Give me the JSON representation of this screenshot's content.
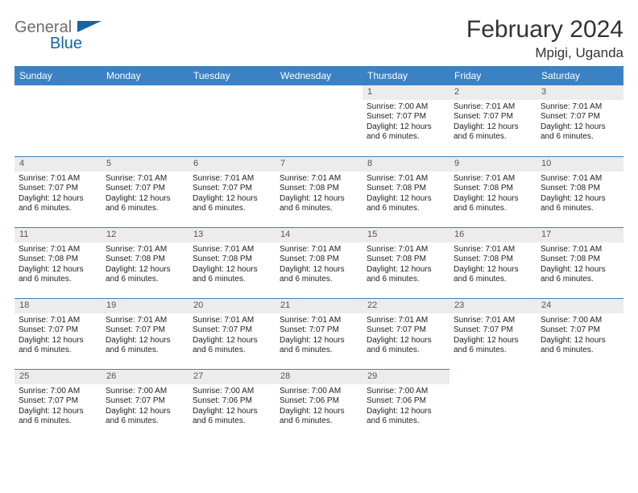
{
  "brand": {
    "general": "General",
    "blue": "Blue"
  },
  "title": "February 2024",
  "location": "Mpigi, Uganda",
  "colors": {
    "header_bg": "#3b82c4",
    "header_text": "#ffffff",
    "daynum_bg": "#ececec",
    "daynum_text": "#555555",
    "border": "#3b82c4",
    "page_bg": "#ffffff",
    "brand_general": "#6c6c6c",
    "brand_blue": "#1665a6",
    "body_text": "#222222"
  },
  "typography": {
    "title_fontsize": 30,
    "location_fontsize": 17,
    "weekday_fontsize": 12,
    "daynum_fontsize": 11,
    "cell_fontsize": 10
  },
  "layout": {
    "cols": 7,
    "rows": 5
  },
  "weekdays": [
    "Sunday",
    "Monday",
    "Tuesday",
    "Wednesday",
    "Thursday",
    "Friday",
    "Saturday"
  ],
  "days": [
    {
      "day": "",
      "blank": true
    },
    {
      "day": "",
      "blank": true
    },
    {
      "day": "",
      "blank": true
    },
    {
      "day": "",
      "blank": true
    },
    {
      "day": "1",
      "sunrise": "Sunrise: 7:00 AM",
      "sunset": "Sunset: 7:07 PM",
      "daylight1": "Daylight: 12 hours",
      "daylight2": "and 6 minutes."
    },
    {
      "day": "2",
      "sunrise": "Sunrise: 7:01 AM",
      "sunset": "Sunset: 7:07 PM",
      "daylight1": "Daylight: 12 hours",
      "daylight2": "and 6 minutes."
    },
    {
      "day": "3",
      "sunrise": "Sunrise: 7:01 AM",
      "sunset": "Sunset: 7:07 PM",
      "daylight1": "Daylight: 12 hours",
      "daylight2": "and 6 minutes."
    },
    {
      "day": "4",
      "sunrise": "Sunrise: 7:01 AM",
      "sunset": "Sunset: 7:07 PM",
      "daylight1": "Daylight: 12 hours",
      "daylight2": "and 6 minutes."
    },
    {
      "day": "5",
      "sunrise": "Sunrise: 7:01 AM",
      "sunset": "Sunset: 7:07 PM",
      "daylight1": "Daylight: 12 hours",
      "daylight2": "and 6 minutes."
    },
    {
      "day": "6",
      "sunrise": "Sunrise: 7:01 AM",
      "sunset": "Sunset: 7:07 PM",
      "daylight1": "Daylight: 12 hours",
      "daylight2": "and 6 minutes."
    },
    {
      "day": "7",
      "sunrise": "Sunrise: 7:01 AM",
      "sunset": "Sunset: 7:08 PM",
      "daylight1": "Daylight: 12 hours",
      "daylight2": "and 6 minutes."
    },
    {
      "day": "8",
      "sunrise": "Sunrise: 7:01 AM",
      "sunset": "Sunset: 7:08 PM",
      "daylight1": "Daylight: 12 hours",
      "daylight2": "and 6 minutes."
    },
    {
      "day": "9",
      "sunrise": "Sunrise: 7:01 AM",
      "sunset": "Sunset: 7:08 PM",
      "daylight1": "Daylight: 12 hours",
      "daylight2": "and 6 minutes."
    },
    {
      "day": "10",
      "sunrise": "Sunrise: 7:01 AM",
      "sunset": "Sunset: 7:08 PM",
      "daylight1": "Daylight: 12 hours",
      "daylight2": "and 6 minutes."
    },
    {
      "day": "11",
      "sunrise": "Sunrise: 7:01 AM",
      "sunset": "Sunset: 7:08 PM",
      "daylight1": "Daylight: 12 hours",
      "daylight2": "and 6 minutes."
    },
    {
      "day": "12",
      "sunrise": "Sunrise: 7:01 AM",
      "sunset": "Sunset: 7:08 PM",
      "daylight1": "Daylight: 12 hours",
      "daylight2": "and 6 minutes."
    },
    {
      "day": "13",
      "sunrise": "Sunrise: 7:01 AM",
      "sunset": "Sunset: 7:08 PM",
      "daylight1": "Daylight: 12 hours",
      "daylight2": "and 6 minutes."
    },
    {
      "day": "14",
      "sunrise": "Sunrise: 7:01 AM",
      "sunset": "Sunset: 7:08 PM",
      "daylight1": "Daylight: 12 hours",
      "daylight2": "and 6 minutes."
    },
    {
      "day": "15",
      "sunrise": "Sunrise: 7:01 AM",
      "sunset": "Sunset: 7:08 PM",
      "daylight1": "Daylight: 12 hours",
      "daylight2": "and 6 minutes."
    },
    {
      "day": "16",
      "sunrise": "Sunrise: 7:01 AM",
      "sunset": "Sunset: 7:08 PM",
      "daylight1": "Daylight: 12 hours",
      "daylight2": "and 6 minutes."
    },
    {
      "day": "17",
      "sunrise": "Sunrise: 7:01 AM",
      "sunset": "Sunset: 7:08 PM",
      "daylight1": "Daylight: 12 hours",
      "daylight2": "and 6 minutes."
    },
    {
      "day": "18",
      "sunrise": "Sunrise: 7:01 AM",
      "sunset": "Sunset: 7:07 PM",
      "daylight1": "Daylight: 12 hours",
      "daylight2": "and 6 minutes."
    },
    {
      "day": "19",
      "sunrise": "Sunrise: 7:01 AM",
      "sunset": "Sunset: 7:07 PM",
      "daylight1": "Daylight: 12 hours",
      "daylight2": "and 6 minutes."
    },
    {
      "day": "20",
      "sunrise": "Sunrise: 7:01 AM",
      "sunset": "Sunset: 7:07 PM",
      "daylight1": "Daylight: 12 hours",
      "daylight2": "and 6 minutes."
    },
    {
      "day": "21",
      "sunrise": "Sunrise: 7:01 AM",
      "sunset": "Sunset: 7:07 PM",
      "daylight1": "Daylight: 12 hours",
      "daylight2": "and 6 minutes."
    },
    {
      "day": "22",
      "sunrise": "Sunrise: 7:01 AM",
      "sunset": "Sunset: 7:07 PM",
      "daylight1": "Daylight: 12 hours",
      "daylight2": "and 6 minutes."
    },
    {
      "day": "23",
      "sunrise": "Sunrise: 7:01 AM",
      "sunset": "Sunset: 7:07 PM",
      "daylight1": "Daylight: 12 hours",
      "daylight2": "and 6 minutes."
    },
    {
      "day": "24",
      "sunrise": "Sunrise: 7:00 AM",
      "sunset": "Sunset: 7:07 PM",
      "daylight1": "Daylight: 12 hours",
      "daylight2": "and 6 minutes."
    },
    {
      "day": "25",
      "sunrise": "Sunrise: 7:00 AM",
      "sunset": "Sunset: 7:07 PM",
      "daylight1": "Daylight: 12 hours",
      "daylight2": "and 6 minutes."
    },
    {
      "day": "26",
      "sunrise": "Sunrise: 7:00 AM",
      "sunset": "Sunset: 7:07 PM",
      "daylight1": "Daylight: 12 hours",
      "daylight2": "and 6 minutes."
    },
    {
      "day": "27",
      "sunrise": "Sunrise: 7:00 AM",
      "sunset": "Sunset: 7:06 PM",
      "daylight1": "Daylight: 12 hours",
      "daylight2": "and 6 minutes."
    },
    {
      "day": "28",
      "sunrise": "Sunrise: 7:00 AM",
      "sunset": "Sunset: 7:06 PM",
      "daylight1": "Daylight: 12 hours",
      "daylight2": "and 6 minutes."
    },
    {
      "day": "29",
      "sunrise": "Sunrise: 7:00 AM",
      "sunset": "Sunset: 7:06 PM",
      "daylight1": "Daylight: 12 hours",
      "daylight2": "and 6 minutes."
    },
    {
      "day": "",
      "blank": true
    },
    {
      "day": "",
      "blank": true
    }
  ]
}
